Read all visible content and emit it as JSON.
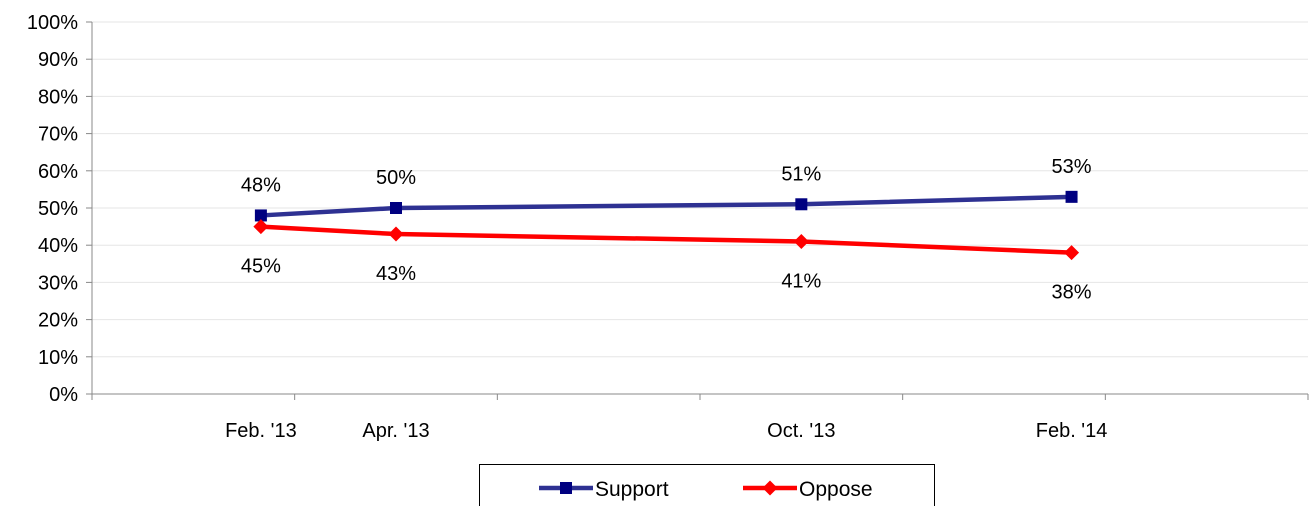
{
  "chart_data": {
    "type": "line",
    "title": "",
    "xlabel": "",
    "ylabel": "",
    "categories": [
      "Feb. '13",
      "Apr. '13",
      "Oct. '13",
      "Feb. '14"
    ],
    "x_months": [
      0,
      2,
      8,
      12
    ],
    "yticks": [
      "0%",
      "10%",
      "20%",
      "30%",
      "40%",
      "50%",
      "60%",
      "70%",
      "80%",
      "90%",
      "100%"
    ],
    "ylim": [
      0,
      100
    ],
    "grid": true,
    "legend_position": "bottom",
    "series": [
      {
        "name": "Support",
        "values": [
          48,
          50,
          51,
          53
        ],
        "labels": [
          "48%",
          "50%",
          "51%",
          "53%"
        ],
        "color": "#2E3192",
        "marker_color": "#000080",
        "marker": "square",
        "label_position": "above"
      },
      {
        "name": "Oppose",
        "values": [
          45,
          43,
          41,
          38
        ],
        "labels": [
          "45%",
          "43%",
          "41%",
          "38%"
        ],
        "color": "#FF0000",
        "marker_color": "#FF0000",
        "marker": "diamond",
        "label_position": "below"
      }
    ]
  }
}
